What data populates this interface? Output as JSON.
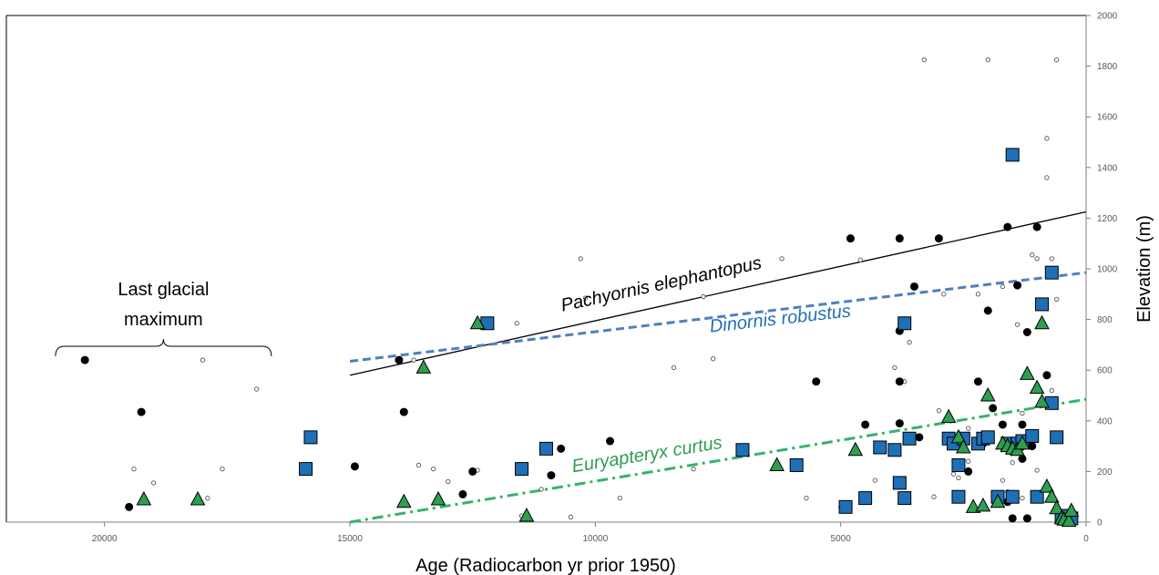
{
  "chart_data": {
    "type": "scatter",
    "xlabel": "Age (Radiocarbon yr prior 1950)",
    "ylabel": "Elevation (m)",
    "xlim": [
      22000,
      0
    ],
    "ylim": [
      0,
      2000
    ],
    "x_ticks": [
      20000,
      15000,
      10000,
      5000,
      0
    ],
    "y_ticks": [
      0,
      200,
      400,
      600,
      800,
      1000,
      1200,
      1400,
      1600,
      1800,
      2000
    ],
    "grid": false,
    "annotations": {
      "lgm_line1": "Last glacial",
      "lgm_line2": "maximum",
      "lgm_range": [
        21000,
        16600
      ],
      "pachyornis_label": "Pachyornis elephantopus",
      "dinornis_label": "Dinornis robustus",
      "euryapteryx_label": "Euryapteryx curtus"
    },
    "colors": {
      "pachyornis": "#000000",
      "dinornis": "#1f6fb8",
      "dinornis_line": "#4f7fc0",
      "euryapteryx": "#2e9e4f",
      "euryapteryx_line": "#36b36a",
      "open_circle": "#555555"
    },
    "trendlines": [
      {
        "series": "pachyornis",
        "x": [
          15000,
          0
        ],
        "y": [
          580,
          1225
        ]
      },
      {
        "series": "dinornis",
        "x": [
          15000,
          0
        ],
        "y": [
          635,
          985
        ]
      },
      {
        "series": "euryapteryx",
        "x": [
          15000,
          0
        ],
        "y": [
          0,
          485
        ]
      }
    ],
    "series": [
      {
        "key": "pachyornis",
        "marker": "filled-circle",
        "points": [
          [
            20400,
            640
          ],
          [
            19500,
            60
          ],
          [
            19250,
            435
          ],
          [
            14900,
            220
          ],
          [
            14000,
            640
          ],
          [
            13900,
            435
          ],
          [
            12700,
            110
          ],
          [
            12500,
            200
          ],
          [
            10900,
            185
          ],
          [
            10700,
            290
          ],
          [
            9700,
            320
          ],
          [
            5500,
            555
          ],
          [
            4800,
            1120
          ],
          [
            4500,
            385
          ],
          [
            3800,
            1120
          ],
          [
            3800,
            755
          ],
          [
            3800,
            555
          ],
          [
            3800,
            390
          ],
          [
            3500,
            930
          ],
          [
            3400,
            335
          ],
          [
            3000,
            1120
          ],
          [
            2600,
            310
          ],
          [
            2400,
            200
          ],
          [
            2200,
            555
          ],
          [
            2100,
            310
          ],
          [
            2000,
            835
          ],
          [
            1900,
            450
          ],
          [
            1600,
            1165
          ],
          [
            1700,
            385
          ],
          [
            1600,
            80
          ],
          [
            1400,
            935
          ],
          [
            1300,
            385
          ],
          [
            1300,
            250
          ],
          [
            1200,
            750
          ],
          [
            1100,
            300
          ],
          [
            1000,
            1165
          ],
          [
            900,
            470
          ],
          [
            800,
            580
          ],
          [
            1200,
            15
          ],
          [
            1500,
            15
          ]
        ]
      },
      {
        "key": "dinornis",
        "marker": "square",
        "points": [
          [
            15900,
            210
          ],
          [
            15800,
            335
          ],
          [
            12200,
            785
          ],
          [
            11500,
            210
          ],
          [
            11000,
            290
          ],
          [
            7000,
            285
          ],
          [
            5900,
            225
          ],
          [
            4900,
            60
          ],
          [
            4500,
            95
          ],
          [
            4200,
            295
          ],
          [
            3900,
            285
          ],
          [
            3800,
            155
          ],
          [
            3700,
            95
          ],
          [
            3700,
            785
          ],
          [
            3600,
            330
          ],
          [
            2800,
            330
          ],
          [
            2700,
            310
          ],
          [
            2600,
            225
          ],
          [
            2600,
            100
          ],
          [
            2500,
            330
          ],
          [
            2200,
            310
          ],
          [
            2100,
            330
          ],
          [
            2000,
            335
          ],
          [
            1800,
            100
          ],
          [
            1600,
            310
          ],
          [
            1500,
            100
          ],
          [
            1400,
            310
          ],
          [
            1300,
            320
          ],
          [
            1100,
            340
          ],
          [
            1000,
            100
          ],
          [
            900,
            860
          ],
          [
            700,
            985
          ],
          [
            700,
            470
          ],
          [
            600,
            335
          ],
          [
            1500,
            1450
          ],
          [
            300,
            15
          ],
          [
            500,
            25
          ]
        ]
      },
      {
        "key": "euryapteryx",
        "marker": "triangle",
        "points": [
          [
            19200,
            90
          ],
          [
            18100,
            90
          ],
          [
            13900,
            80
          ],
          [
            13500,
            610
          ],
          [
            13200,
            90
          ],
          [
            12400,
            785
          ],
          [
            11400,
            25
          ],
          [
            6300,
            225
          ],
          [
            4700,
            285
          ],
          [
            2800,
            415
          ],
          [
            2600,
            335
          ],
          [
            2500,
            295
          ],
          [
            2300,
            60
          ],
          [
            2100,
            65
          ],
          [
            2000,
            500
          ],
          [
            1700,
            310
          ],
          [
            1600,
            300
          ],
          [
            1500,
            290
          ],
          [
            1400,
            285
          ],
          [
            1200,
            585
          ],
          [
            1000,
            530
          ],
          [
            900,
            475
          ],
          [
            800,
            140
          ],
          [
            700,
            100
          ],
          [
            600,
            55
          ],
          [
            500,
            15
          ],
          [
            450,
            10
          ],
          [
            350,
            5
          ],
          [
            300,
            45
          ],
          [
            900,
            785
          ],
          [
            1800,
            80
          ],
          [
            1300,
            310
          ]
        ]
      },
      {
        "key": "open",
        "marker": "open-circle",
        "points": [
          [
            19400,
            210
          ],
          [
            19000,
            155
          ],
          [
            18000,
            640
          ],
          [
            17900,
            95
          ],
          [
            17600,
            210
          ],
          [
            16900,
            525
          ],
          [
            13700,
            640
          ],
          [
            13600,
            225
          ],
          [
            13300,
            210
          ],
          [
            13000,
            160
          ],
          [
            12400,
            205
          ],
          [
            11600,
            785
          ],
          [
            11500,
            25
          ],
          [
            11100,
            130
          ],
          [
            10500,
            20
          ],
          [
            10300,
            1040
          ],
          [
            10200,
            885
          ],
          [
            9500,
            95
          ],
          [
            8400,
            610
          ],
          [
            8000,
            210
          ],
          [
            7800,
            890
          ],
          [
            7600,
            645
          ],
          [
            6200,
            1040
          ],
          [
            5700,
            95
          ],
          [
            5000,
            60
          ],
          [
            4600,
            1035
          ],
          [
            4300,
            165
          ],
          [
            3900,
            610
          ],
          [
            3700,
            555
          ],
          [
            3600,
            710
          ],
          [
            3300,
            1825
          ],
          [
            2900,
            900
          ],
          [
            2700,
            190
          ],
          [
            2400,
            240
          ],
          [
            2200,
            900
          ],
          [
            2000,
            1825
          ],
          [
            1700,
            930
          ],
          [
            1500,
            235
          ],
          [
            1400,
            780
          ],
          [
            1300,
            430
          ],
          [
            1200,
            590
          ],
          [
            1100,
            1055
          ],
          [
            1000,
            1040
          ],
          [
            900,
            480
          ],
          [
            800,
            1515
          ],
          [
            800,
            1360
          ],
          [
            700,
            1040
          ],
          [
            600,
            1825
          ],
          [
            700,
            520
          ],
          [
            1000,
            205
          ],
          [
            1300,
            95
          ],
          [
            1600,
            120
          ],
          [
            2600,
            175
          ],
          [
            3100,
            100
          ],
          [
            1700,
            165
          ],
          [
            2400,
            370
          ],
          [
            3000,
            440
          ],
          [
            600,
            880
          ]
        ]
      }
    ]
  }
}
